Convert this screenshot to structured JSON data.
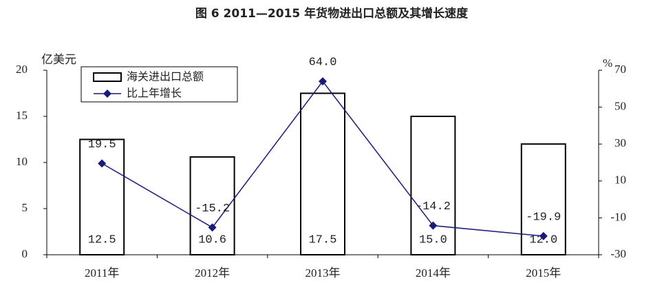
{
  "chart_data": {
    "type": "bar-line",
    "title": "图 6 2011—2015 年货物进出口总额及其增长速度",
    "y_label": "亿美元",
    "y2_label": "%",
    "categories": [
      "2011年",
      "2012年",
      "2013年",
      "2014年",
      "2015年"
    ],
    "series": [
      {
        "name": "海关进出口总额",
        "type": "bar",
        "color": "#000000",
        "values": [
          12.5,
          10.6,
          17.5,
          15,
          12
        ],
        "value_labels": [
          "12.5",
          "10.6",
          "17.5",
          "15.0",
          "12.0"
        ]
      },
      {
        "name": "比上年增长",
        "type": "line",
        "axis": "y2",
        "color": "#1a1a7a",
        "values": [
          19.5,
          -15.2,
          64,
          -14.2,
          -19.9
        ],
        "value_labels": [
          "19.5",
          "-15.2",
          "64.0",
          "-14.2",
          "-19.9"
        ]
      }
    ],
    "ylim": [
      0,
      20
    ],
    "yticks": [
      0,
      5,
      10,
      15,
      20
    ],
    "y2lim": [
      -30,
      70
    ],
    "y2ticks": [
      -30,
      -10,
      10,
      30,
      50,
      70
    ]
  }
}
